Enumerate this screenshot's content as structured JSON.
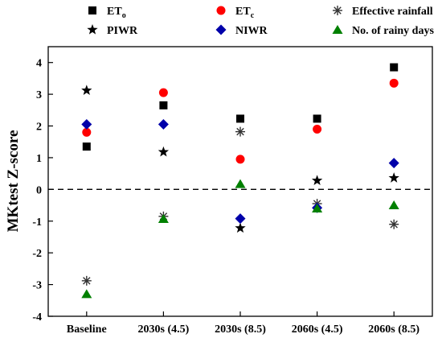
{
  "chart_data": {
    "type": "scatter",
    "ylabel": "MKtest Z-score",
    "categories": [
      "Baseline",
      "2030s (4.5)",
      "2030s (8.5)",
      "2060s (4.5)",
      "2060s (8.5)"
    ],
    "ylim": [
      -4,
      4.5
    ],
    "yticks": [
      4,
      3,
      2,
      1,
      0,
      -1,
      -2,
      -3,
      -4
    ],
    "reference_line": {
      "y": 0,
      "style": "dashed"
    },
    "legend_position": "top",
    "series": [
      {
        "name": "ET",
        "sub": "o",
        "marker": "square",
        "color": "#000000",
        "values": [
          1.35,
          2.65,
          2.23,
          2.23,
          3.85
        ]
      },
      {
        "name": "ET",
        "sub": "c",
        "marker": "circle",
        "color": "#ff0000",
        "values": [
          1.8,
          3.05,
          0.95,
          1.9,
          3.35
        ]
      },
      {
        "name": "Effective rainfall",
        "sub": "",
        "marker": "asterisk",
        "color": "#333333",
        "values": [
          -2.88,
          -0.85,
          1.82,
          -0.45,
          -1.1
        ]
      },
      {
        "name": "PIWR",
        "sub": "",
        "marker": "star",
        "color": "#000000",
        "values": [
          3.12,
          1.18,
          -1.22,
          0.28,
          0.36
        ]
      },
      {
        "name": "NIWR",
        "sub": "",
        "marker": "diamond",
        "color": "#0000aa",
        "values": [
          2.05,
          2.05,
          -0.92,
          -0.58,
          0.83
        ]
      },
      {
        "name": "No. of rainy days",
        "sub": "",
        "marker": "triangle",
        "color": "#008000",
        "values": [
          -3.3,
          -0.93,
          0.17,
          -0.6,
          -0.5
        ]
      }
    ]
  }
}
